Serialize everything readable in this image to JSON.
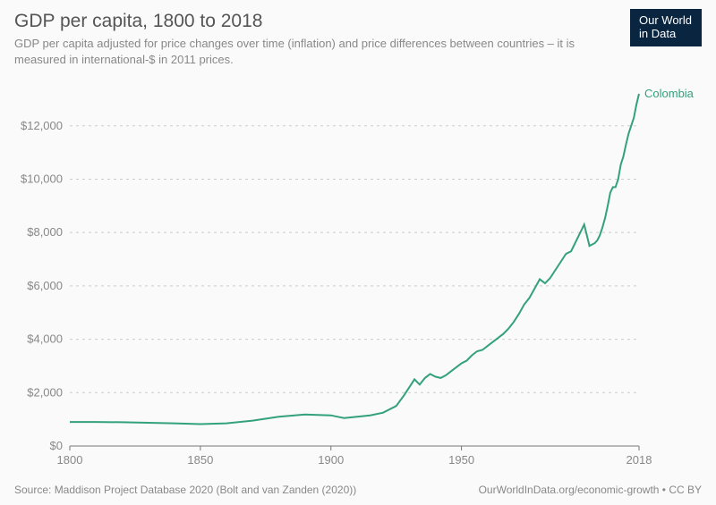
{
  "header": {
    "title": "GDP per capita, 1800 to 2018",
    "subtitle": "GDP per capita adjusted for price changes over time (inflation) and price differences between countries – it is measured in international-$ in 2011 prices."
  },
  "logo": {
    "line1": "Our World",
    "line2": "in Data"
  },
  "footer": {
    "source": "Source: Maddison Project Database 2020 (Bolt and van Zanden (2020))",
    "attribution": "OurWorldInData.org/economic-growth • CC BY"
  },
  "chart": {
    "type": "line",
    "background_color": "#fafafa",
    "grid_color": "#cccccc",
    "axis_color": "#777777",
    "label_color": "#888888",
    "label_fontsize": 13,
    "x": {
      "min": 1800,
      "max": 2018,
      "ticks": [
        1800,
        1850,
        1900,
        1950,
        2018
      ],
      "tick_labels": [
        "1800",
        "1850",
        "1900",
        "1950",
        "2018"
      ]
    },
    "y": {
      "min": 0,
      "max": 13500,
      "ticks": [
        0,
        2000,
        4000,
        6000,
        8000,
        10000,
        12000
      ],
      "tick_labels": [
        "$0",
        "$2,000",
        "$4,000",
        "$6,000",
        "$8,000",
        "$10,000",
        "$12,000"
      ]
    },
    "series": [
      {
        "name": "Colombia",
        "label": "Colombia",
        "color": "#33a17b",
        "line_width": 2,
        "data": [
          [
            1800,
            900
          ],
          [
            1810,
            900
          ],
          [
            1820,
            890
          ],
          [
            1830,
            870
          ],
          [
            1840,
            850
          ],
          [
            1850,
            820
          ],
          [
            1860,
            850
          ],
          [
            1870,
            950
          ],
          [
            1880,
            1100
          ],
          [
            1890,
            1180
          ],
          [
            1900,
            1150
          ],
          [
            1905,
            1050
          ],
          [
            1910,
            1100
          ],
          [
            1915,
            1150
          ],
          [
            1920,
            1250
          ],
          [
            1925,
            1500
          ],
          [
            1928,
            1900
          ],
          [
            1930,
            2200
          ],
          [
            1932,
            2500
          ],
          [
            1934,
            2300
          ],
          [
            1936,
            2550
          ],
          [
            1938,
            2700
          ],
          [
            1940,
            2600
          ],
          [
            1942,
            2550
          ],
          [
            1944,
            2650
          ],
          [
            1946,
            2800
          ],
          [
            1948,
            2950
          ],
          [
            1950,
            3100
          ],
          [
            1952,
            3200
          ],
          [
            1954,
            3400
          ],
          [
            1956,
            3550
          ],
          [
            1958,
            3600
          ],
          [
            1960,
            3750
          ],
          [
            1962,
            3900
          ],
          [
            1964,
            4050
          ],
          [
            1966,
            4200
          ],
          [
            1968,
            4400
          ],
          [
            1970,
            4650
          ],
          [
            1972,
            4950
          ],
          [
            1974,
            5300
          ],
          [
            1976,
            5550
          ],
          [
            1978,
            5900
          ],
          [
            1980,
            6250
          ],
          [
            1982,
            6100
          ],
          [
            1984,
            6300
          ],
          [
            1986,
            6600
          ],
          [
            1988,
            6900
          ],
          [
            1990,
            7200
          ],
          [
            1992,
            7300
          ],
          [
            1994,
            7700
          ],
          [
            1996,
            8100
          ],
          [
            1997,
            8300
          ],
          [
            1998,
            7900
          ],
          [
            1999,
            7500
          ],
          [
            2000,
            7550
          ],
          [
            2001,
            7600
          ],
          [
            2002,
            7700
          ],
          [
            2003,
            7900
          ],
          [
            2004,
            8200
          ],
          [
            2005,
            8550
          ],
          [
            2006,
            9000
          ],
          [
            2007,
            9500
          ],
          [
            2008,
            9700
          ],
          [
            2009,
            9700
          ],
          [
            2010,
            10000
          ],
          [
            2011,
            10550
          ],
          [
            2012,
            10850
          ],
          [
            2013,
            11300
          ],
          [
            2014,
            11700
          ],
          [
            2015,
            12000
          ],
          [
            2016,
            12300
          ],
          [
            2017,
            12800
          ],
          [
            2018,
            13200
          ]
        ]
      }
    ]
  }
}
